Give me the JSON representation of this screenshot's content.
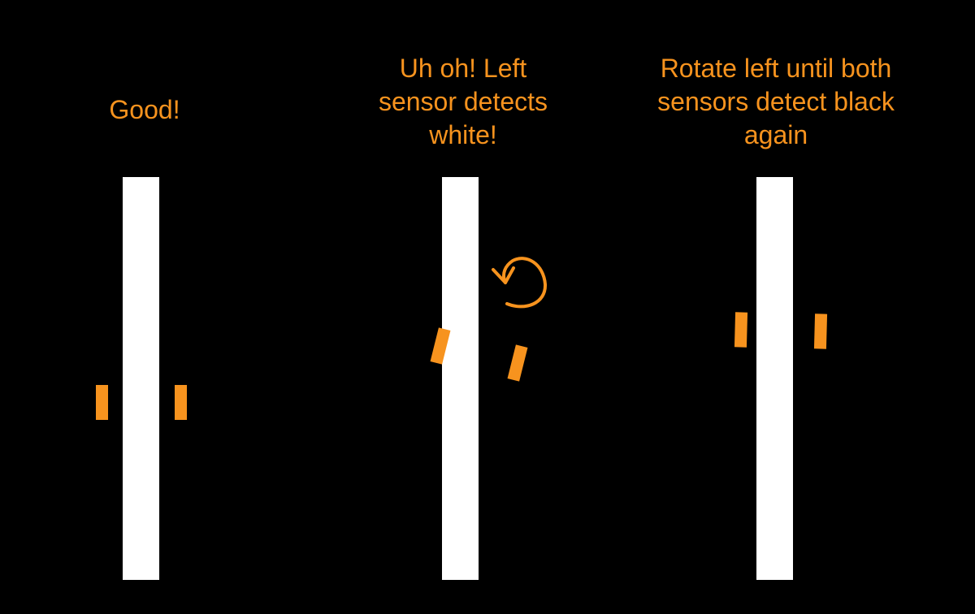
{
  "background_color": "#000000",
  "accent_color": "#F7931E",
  "line_color": "#FFFFFF",
  "panels": [
    {
      "caption": "Good!"
    },
    {
      "caption": "Uh oh! Left\nsensor detects\nwhite!"
    },
    {
      "caption": "Rotate left until both\nsensors detect black\nagain"
    }
  ],
  "rotation_arrow": {
    "icon": "rotate-left-arrow-icon"
  }
}
